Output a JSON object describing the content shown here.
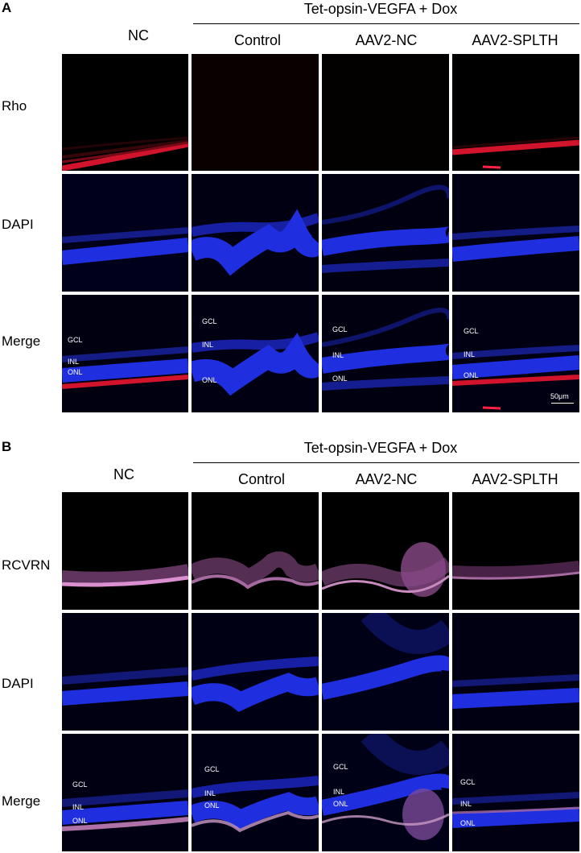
{
  "panels": [
    {
      "letter": "A",
      "group_title": "Tet-opsin-VEGFA  + Dox",
      "columns": [
        "NC",
        "Control",
        "AAV2-NC",
        "AAV2-SPLTH"
      ],
      "rows": [
        {
          "label": "Rho"
        },
        {
          "label": "DAPI"
        },
        {
          "label": "Merge"
        }
      ],
      "layer_labels": [
        "GCL",
        "INL",
        "ONL"
      ],
      "scale_bar": "50μm"
    },
    {
      "letter": "B",
      "group_title": "Tet-opsin-VEGFA  + Dox",
      "columns": [
        "NC",
        "Control",
        "AAV2-NC",
        "AAV2-SPLTH"
      ],
      "rows": [
        {
          "label": "RCVRN"
        },
        {
          "label": "DAPI"
        },
        {
          "label": "Merge"
        }
      ],
      "layer_labels": [
        "GCL",
        "INL",
        "ONL"
      ]
    }
  ],
  "colors": {
    "rho": "#c8102e",
    "dapi": "#1f2fe0",
    "rcvrn": "#d98fd0",
    "background": "#000000"
  }
}
